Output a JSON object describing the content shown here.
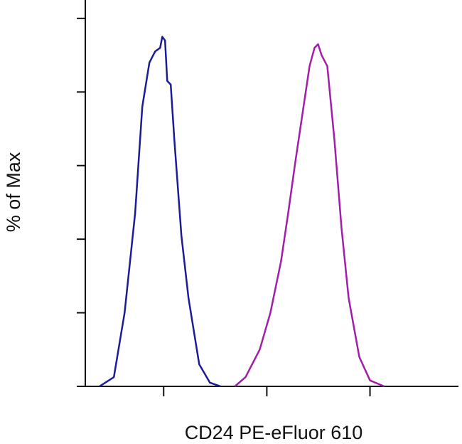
{
  "chart_data": {
    "type": "line",
    "xlabel": "CD24 PE-eFluor 610",
    "ylabel": "% of Max",
    "xscale": "log",
    "xlim": [
      174,
      720000
    ],
    "xticks": [
      1000,
      10000,
      100000
    ],
    "ylim": [
      0,
      105
    ],
    "yticks": [
      0,
      20,
      40,
      60,
      80,
      100
    ],
    "series": [
      {
        "color": "#1c1c96",
        "x": [
          239,
          329,
          418,
          529,
          621,
          728,
          826,
          924,
          969,
          1032,
          1083,
          1172,
          1269,
          1486,
          1741,
          2211,
          2808,
          3565
        ],
        "values": [
          0,
          2.5,
          20,
          47,
          76,
          88,
          91,
          92,
          95,
          94,
          83,
          82,
          67,
          41,
          24,
          6,
          1,
          0
        ]
      },
      {
        "color": "#a21ea8",
        "x": [
          4895,
          6209,
          8536,
          10826,
          13740,
          16100,
          18880,
          22130,
          25950,
          28980,
          31390,
          33960,
          38550,
          45200,
          52970,
          62090,
          78800,
          100000,
          137400
        ],
        "values": [
          0,
          2.5,
          10,
          20,
          34,
          47,
          61,
          74,
          87,
          92,
          93,
          90,
          87,
          67,
          43,
          24,
          8,
          1.6,
          0
        ]
      }
    ]
  }
}
